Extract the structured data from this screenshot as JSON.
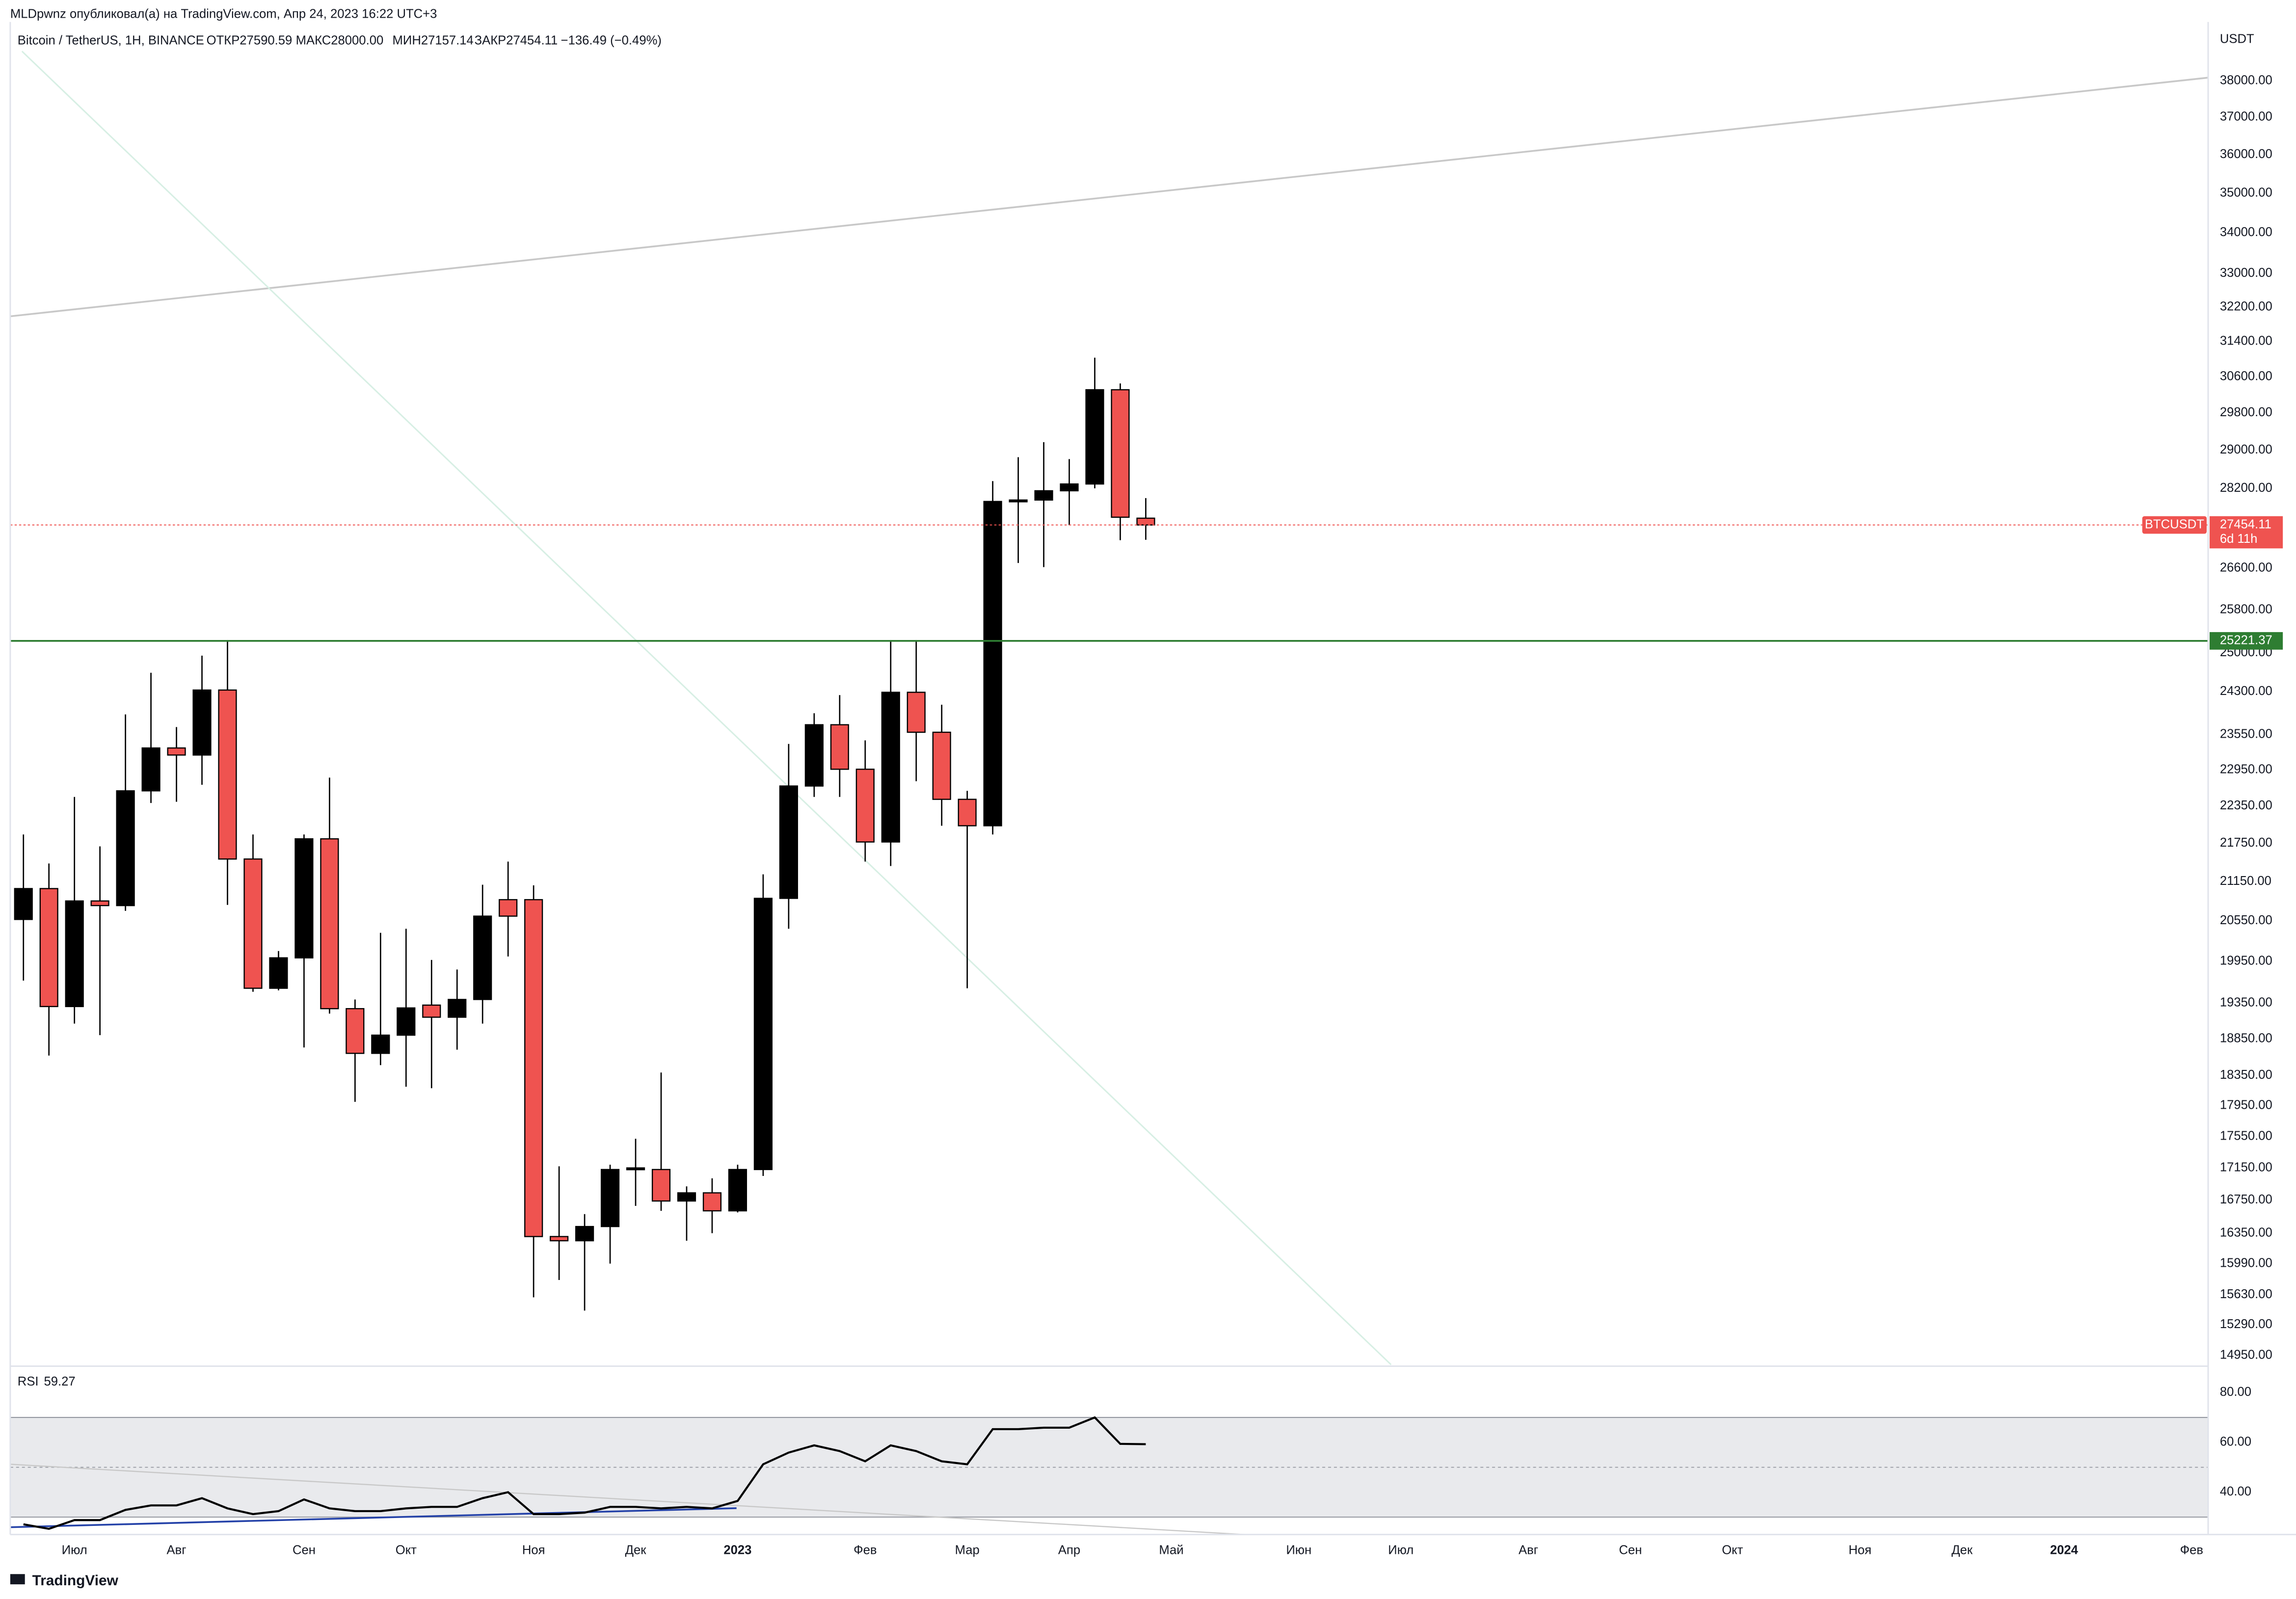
{
  "publisher": "MLDpwnz опубликовал(а) на TradingView.com, Апр 24, 2023 16:22 UTC+3",
  "footer": "TradingView",
  "chart_data": [
    {
      "type": "candlestick",
      "title": "Bitcoin / TetherUS, 1H, BINANCE",
      "ohlc_text": [
        "ОТКР27590.59",
        "МАКС28000.00",
        "МИН27157.14",
        "ЗАКР27454.11",
        "−136.49 (−0.49%)"
      ],
      "unit": "USDT",
      "log_scale": true,
      "up_color": "#000000",
      "down_color": "#ef5350",
      "categories": [
        null,
        null,
        "Июл",
        null,
        null,
        null,
        "Авг",
        null,
        null,
        null,
        null,
        "Сен",
        null,
        null,
        null,
        "Окт",
        null,
        null,
        null,
        null,
        "Ноя",
        null,
        null,
        null,
        "Дек",
        null,
        null,
        null,
        "2023",
        null,
        null,
        null,
        null,
        "Фев",
        null,
        null,
        null,
        "Мар",
        null,
        null,
        null,
        "Апр",
        null,
        null,
        null,
        "Май",
        null,
        null,
        null,
        null,
        "Июн",
        null,
        null,
        null,
        "Июл",
        null,
        null,
        null,
        null,
        "Авг",
        null,
        null,
        null,
        "Сен",
        null,
        null,
        null,
        "Окт",
        null,
        null,
        null,
        null,
        "Ноя",
        null,
        null,
        null,
        "Дек",
        null,
        null,
        null,
        "2024",
        null,
        null,
        null,
        null,
        "Фев"
      ],
      "open": [
        20570,
        21040,
        19300,
        20850,
        20780,
        22600,
        23320,
        23200,
        24330,
        21500,
        19560,
        20000,
        21820,
        19270,
        18650,
        18900,
        19320,
        19150,
        19400,
        20870,
        20870,
        16310,
        16260,
        16430,
        17130,
        17130,
        16740,
        16840,
        16620,
        17130,
        20890,
        22680,
        23720,
        22960,
        21770,
        24290,
        23590,
        22460,
        22030,
        27930,
        27960,
        28150,
        28290,
        30310,
        27590.59,
        null,
        null,
        null,
        null,
        null,
        null,
        null,
        null,
        null,
        null,
        null,
        null,
        null,
        null,
        null,
        null,
        null,
        null,
        null,
        null,
        null,
        null,
        null,
        null,
        null,
        null,
        null,
        null,
        null,
        null,
        null,
        null,
        null,
        null,
        null,
        null,
        null,
        null,
        null,
        null,
        null
      ],
      "high": [
        21890,
        21430,
        22500,
        21700,
        23900,
        24640,
        23680,
        24950,
        25210,
        21890,
        20100,
        21890,
        22820,
        19400,
        20370,
        20430,
        19970,
        19830,
        21100,
        21460,
        21090,
        17170,
        16580,
        17190,
        17520,
        18390,
        16920,
        17020,
        17190,
        21260,
        23390,
        23920,
        24240,
        23450,
        25210,
        25210,
        24070,
        22600,
        28350,
        28850,
        29170,
        28810,
        31030,
        30450,
        28000,
        null,
        null,
        null,
        null,
        null,
        null,
        null,
        null,
        null,
        null,
        null,
        null,
        null,
        null,
        null,
        null,
        null,
        null,
        null,
        null,
        null,
        null,
        null,
        null,
        null,
        null,
        null,
        null,
        null,
        null,
        null,
        null,
        null,
        null,
        null,
        null,
        null,
        null,
        null,
        null,
        null
      ],
      "low": [
        19670,
        18620,
        19060,
        18900,
        20700,
        22400,
        22420,
        22700,
        20790,
        19510,
        19530,
        18730,
        19200,
        18000,
        18490,
        18200,
        18180,
        18700,
        19060,
        20020,
        15600,
        15800,
        15450,
        15990,
        16680,
        16620,
        16260,
        16350,
        16600,
        17050,
        20430,
        22500,
        22500,
        21460,
        21390,
        22760,
        22030,
        19560,
        21890,
        26700,
        26620,
        27450,
        28200,
        27150,
        27157.14,
        null,
        null,
        null,
        null,
        null,
        null,
        null,
        null,
        null,
        null,
        null,
        null,
        null,
        null,
        null,
        null,
        null,
        null,
        null,
        null,
        null,
        null,
        null,
        null,
        null,
        null,
        null,
        null,
        null,
        null,
        null,
        null,
        null,
        null,
        null,
        null,
        null,
        null,
        null,
        null,
        null
      ],
      "close": [
        21040,
        19300,
        20850,
        20780,
        22600,
        23320,
        23200,
        24330,
        21500,
        19560,
        20000,
        21820,
        19270,
        18650,
        18900,
        19280,
        19150,
        19400,
        20620,
        20620,
        16310,
        16260,
        16430,
        17130,
        17150,
        16740,
        16840,
        16620,
        17130,
        20890,
        22680,
        23720,
        22960,
        21770,
        24290,
        23590,
        22460,
        22030,
        27930,
        27960,
        28150,
        28290,
        30310,
        27610,
        27454.11,
        null,
        null,
        null,
        null,
        null,
        null,
        null,
        null,
        null,
        null,
        null,
        null,
        null,
        null,
        null,
        null,
        null,
        null,
        null,
        null,
        null,
        null,
        null,
        null,
        null,
        null,
        null,
        null,
        null,
        null,
        null,
        null,
        null,
        null,
        null,
        null,
        null,
        null,
        null,
        null,
        null
      ],
      "ylim": [
        14850,
        39670
      ],
      "yticks": [
        {
          "value": 38000,
          "label": "38000.00"
        },
        {
          "value": 37000,
          "label": "37000.00"
        },
        {
          "value": 36000,
          "label": "36000.00"
        },
        {
          "value": 35000,
          "label": "35000.00"
        },
        {
          "value": 34000,
          "label": "34000.00"
        },
        {
          "value": 33000,
          "label": "33000.00"
        },
        {
          "value": 32200,
          "label": "32200.00"
        },
        {
          "value": 31400,
          "label": "31400.00"
        },
        {
          "value": 30600,
          "label": "30600.00"
        },
        {
          "value": 29800,
          "label": "29800.00"
        },
        {
          "value": 29000,
          "label": "29000.00"
        },
        {
          "value": 28200,
          "label": "28200.00"
        },
        {
          "value": 26600,
          "label": "26600.00"
        },
        {
          "value": 25800,
          "label": "25800.00"
        },
        {
          "value": 25000,
          "label": "25000.00"
        },
        {
          "value": 24300,
          "label": "24300.00"
        },
        {
          "value": 23550,
          "label": "23550.00"
        },
        {
          "value": 22950,
          "label": "22950.00"
        },
        {
          "value": 22350,
          "label": "22350.00"
        },
        {
          "value": 21750,
          "label": "21750.00"
        },
        {
          "value": 21150,
          "label": "21150.00"
        },
        {
          "value": 20550,
          "label": "20550.00"
        },
        {
          "value": 19950,
          "label": "19950.00"
        },
        {
          "value": 19350,
          "label": "19350.00"
        },
        {
          "value": 18850,
          "label": "18850.00"
        },
        {
          "value": 18350,
          "label": "18350.00"
        },
        {
          "value": 17950,
          "label": "17950.00"
        },
        {
          "value": 17550,
          "label": "17550.00"
        },
        {
          "value": 17150,
          "label": "17150.00"
        },
        {
          "value": 16750,
          "label": "16750.00"
        },
        {
          "value": 16350,
          "label": "16350.00"
        },
        {
          "value": 15990,
          "label": "15990.00"
        },
        {
          "value": 15630,
          "label": "15630.00"
        },
        {
          "value": 15290,
          "label": "15290.00"
        },
        {
          "value": 14950,
          "label": "14950.00"
        }
      ],
      "level": 25221.37,
      "level_color": "#2e7d32",
      "last_price": 27454.11,
      "last_color": "#ef5350",
      "countdown": "6d 11h",
      "symbol_tag": "BTCUSDT"
    },
    {
      "type": "line",
      "title": "RSI",
      "last_value": 59.27,
      "color": "#000000",
      "values": [
        27.1,
        25.3,
        28.8,
        28.8,
        32.9,
        34.7,
        34.7,
        37.6,
        33.5,
        31.2,
        32.4,
        37.1,
        33.5,
        32.4,
        32.4,
        33.5,
        34.1,
        34.1,
        37.6,
        40.0,
        31.2,
        31.2,
        31.8,
        34.1,
        34.1,
        33.5,
        34.1,
        33.5,
        36.5,
        51.2,
        55.9,
        58.8,
        56.5,
        52.4,
        58.8,
        56.5,
        52.4,
        51.2,
        65.3,
        65.3,
        65.9,
        65.9,
        70.0,
        59.4,
        59.27,
        null,
        null,
        null,
        null,
        null,
        null,
        null,
        null,
        null,
        null,
        null,
        null,
        null,
        null,
        null,
        null,
        null,
        null,
        null,
        null,
        null,
        null,
        null,
        null,
        null,
        null,
        null,
        null,
        null,
        null,
        null,
        null,
        null,
        null,
        null,
        null,
        null,
        null,
        null,
        null,
        null
      ],
      "ylim": [
        23,
        90
      ],
      "yticks": [
        {
          "value": 40,
          "label": "40.00"
        },
        {
          "value": 60,
          "label": "60.00"
        },
        {
          "value": 80,
          "label": "80.00"
        }
      ],
      "band": [
        30,
        70
      ],
      "midline": 50
    }
  ]
}
